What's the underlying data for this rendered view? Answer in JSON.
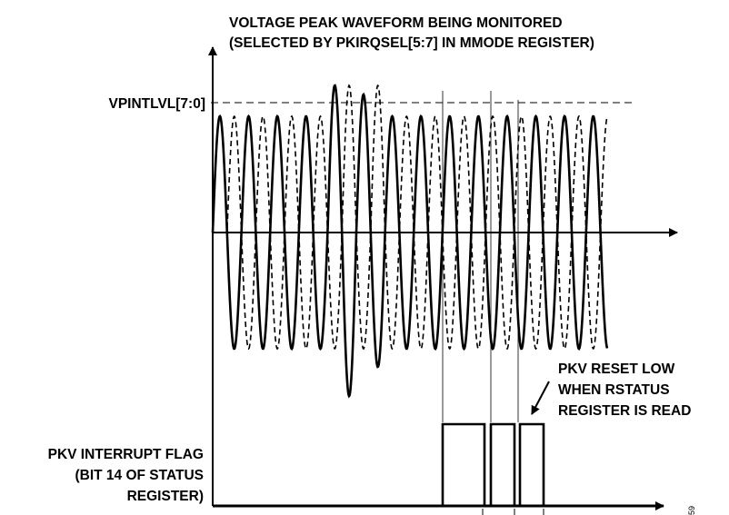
{
  "diagram": {
    "title": {
      "line1": "VOLTAGE PEAK WAVEFORM BEING MONITORED",
      "line2": "(SELECTED BY PKIRQSEL[5:7] IN MMODE REGISTER)"
    },
    "threshold_label": "VPINTLVL[7:0]",
    "flag_label": {
      "line1": "PKV INTERRUPT FLAG",
      "line2": "(BIT 14 OF STATUS",
      "line3": "REGISTER)"
    },
    "reset_note": {
      "line1": "PKV RESET LOW",
      "line2": "WHEN RSTATUS",
      "line3": "REGISTER IS READ"
    },
    "figure_number": "59",
    "colors": {
      "line": "#000000",
      "background": "#ffffff"
    }
  }
}
